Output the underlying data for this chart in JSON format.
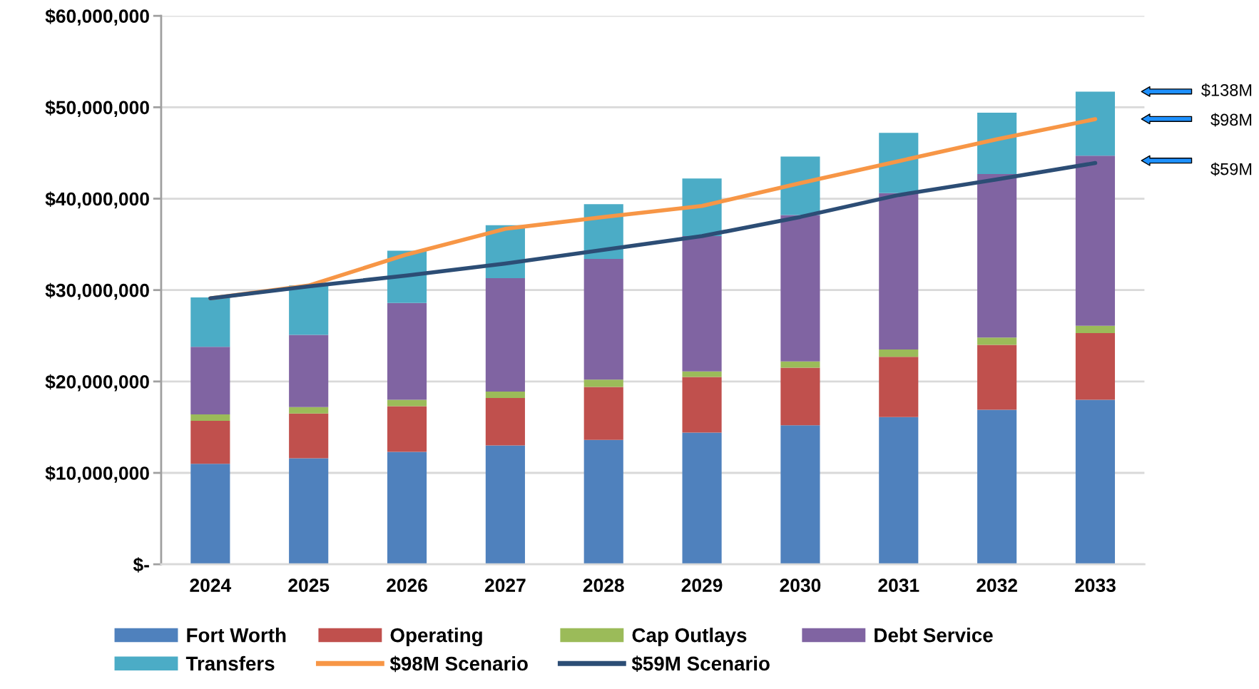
{
  "chart_data": {
    "type": "bar",
    "stacked": true,
    "categories": [
      "2024",
      "2025",
      "2026",
      "2027",
      "2028",
      "2029",
      "2030",
      "2031",
      "2032",
      "2033"
    ],
    "series": [
      {
        "name": "Fort Worth",
        "color": "#4f81bd",
        "values": [
          11000000,
          11600000,
          12300000,
          13000000,
          13600000,
          14400000,
          15200000,
          16100000,
          16900000,
          18000000
        ]
      },
      {
        "name": "Operating",
        "color": "#c0504d",
        "values": [
          4700000,
          4900000,
          5000000,
          5200000,
          5800000,
          6100000,
          6300000,
          6600000,
          7100000,
          7300000
        ]
      },
      {
        "name": "Cap Outlays",
        "color": "#9bbb59",
        "values": [
          700000,
          700000,
          700000,
          700000,
          800000,
          600000,
          700000,
          800000,
          800000,
          800000
        ]
      },
      {
        "name": "Debt Service",
        "color": "#8064a2",
        "values": [
          7400000,
          7900000,
          10600000,
          12400000,
          13200000,
          14800000,
          16000000,
          17100000,
          17900000,
          18600000
        ]
      },
      {
        "name": "Transfers",
        "color": "#4bacc6",
        "values": [
          5400000,
          5400000,
          5700000,
          5800000,
          6000000,
          6300000,
          6400000,
          6600000,
          6700000,
          7000000
        ]
      },
      {
        "name": "$98M Scenario",
        "type": "line",
        "color": "#f79646",
        "values": [
          29100000,
          30500000,
          33900000,
          36700000,
          38000000,
          39200000,
          41700000,
          44100000,
          46500000,
          48700000
        ]
      },
      {
        "name": "$59M Scenario",
        "type": "line",
        "color": "#2c4d75",
        "values": [
          29100000,
          30400000,
          31600000,
          32900000,
          34400000,
          35900000,
          38000000,
          40400000,
          42100000,
          43900000
        ]
      }
    ],
    "ylim": [
      0,
      60000000
    ],
    "yticks": [
      {
        "value": 0,
        "label": "$-"
      },
      {
        "value": 10000000,
        "label": "$10,000,000"
      },
      {
        "value": 20000000,
        "label": "$20,000,000"
      },
      {
        "value": 30000000,
        "label": "$30,000,000"
      },
      {
        "value": 40000000,
        "label": "$40,000,000"
      },
      {
        "value": 50000000,
        "label": "$50,000,000"
      },
      {
        "value": 60000000,
        "label": "$60,000,000"
      }
    ],
    "grid": "y",
    "legend": "bottom",
    "marker": "none",
    "line_style": "solid",
    "annotations": [
      "$138M",
      "$98M",
      "$59M"
    ]
  }
}
